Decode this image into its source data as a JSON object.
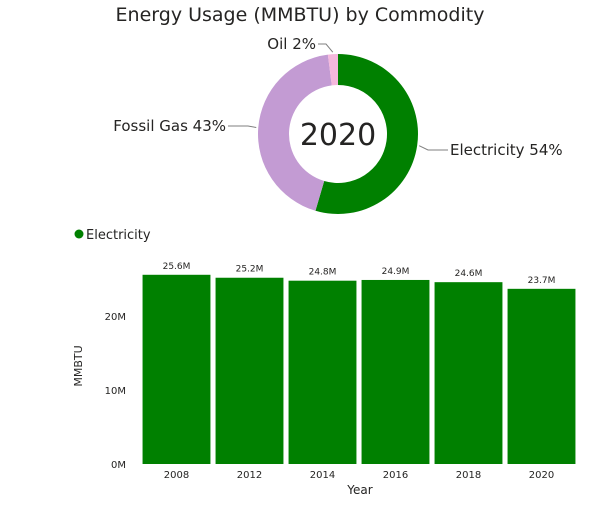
{
  "chart_data": [
    {
      "type": "pie",
      "variant": "donut",
      "title": "Energy Usage (MMBTU) by Commodity",
      "center_label": "2020",
      "slices": [
        {
          "label": "Electricity",
          "value": 54,
          "display": "Electricity 54%",
          "color": "#008000"
        },
        {
          "label": "Fossil Gas",
          "value": 43,
          "display": "Fossil Gas 43%",
          "color": "#c39bd3"
        },
        {
          "label": "Oil",
          "value": 2,
          "display": "Oil 2%",
          "color": "#f4b8dc"
        }
      ]
    },
    {
      "type": "bar",
      "legend": {
        "position": "top-left",
        "entries": [
          {
            "name": "Electricity",
            "color": "#008000"
          }
        ]
      },
      "categories": [
        "2008",
        "2012",
        "2014",
        "2016",
        "2018",
        "2020"
      ],
      "series": [
        {
          "name": "Electricity",
          "color": "#008000",
          "values": [
            25.6,
            25.2,
            24.8,
            24.9,
            24.6,
            23.7
          ],
          "data_labels": [
            "25.6M",
            "25.2M",
            "24.8M",
            "24.9M",
            "24.6M",
            "23.7M"
          ]
        }
      ],
      "xlabel": "Year",
      "ylabel": "MMBTU",
      "yticks": [
        0,
        10,
        20
      ],
      "ytick_labels": [
        "0M",
        "10M",
        "20M"
      ],
      "ylim": [
        0,
        27.6
      ],
      "grid": false
    }
  ]
}
